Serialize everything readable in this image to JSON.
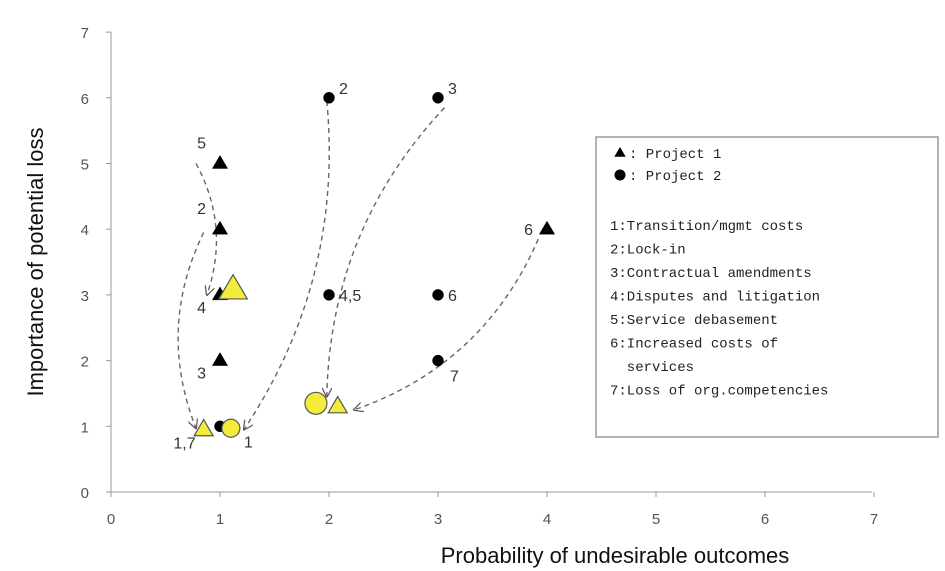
{
  "chart_data": {
    "type": "scatter",
    "xlabel": "Probability of undesirable outcomes",
    "ylabel": "Importance of potential loss",
    "xlim": [
      0,
      7
    ],
    "ylim": [
      0,
      7
    ],
    "xticks": [
      "0",
      "1",
      "2",
      "3",
      "4",
      "5",
      "6",
      "7"
    ],
    "yticks": [
      "0",
      "1",
      "2",
      "3",
      "4",
      "5",
      "6",
      "7"
    ],
    "grid": false,
    "legend_placement": "right",
    "series": [
      {
        "name": "Project 1",
        "marker": "triangle",
        "color": "#000000",
        "points": [
          {
            "x": 1,
            "y": 5,
            "label": "5"
          },
          {
            "x": 1,
            "y": 4,
            "label": "2"
          },
          {
            "x": 1,
            "y": 3,
            "label": "4"
          },
          {
            "x": 1,
            "y": 2,
            "label": "3"
          },
          {
            "x": 4,
            "y": 4,
            "label": "6"
          }
        ]
      },
      {
        "name": "Project 2",
        "marker": "circle",
        "color": "#000000",
        "points": [
          {
            "x": 2,
            "y": 6,
            "label": "2"
          },
          {
            "x": 3,
            "y": 6,
            "label": "3"
          },
          {
            "x": 2,
            "y": 3,
            "label": "4,5"
          },
          {
            "x": 3,
            "y": 3,
            "label": "6"
          },
          {
            "x": 3,
            "y": 2,
            "label": "7"
          },
          {
            "x": 1,
            "y": 1,
            "label": ""
          }
        ]
      },
      {
        "name": "",
        "marker": "highlight",
        "color": "#f2ec3c",
        "points": [
          {
            "x": 1.12,
            "y": 3.08,
            "shape": "triangle",
            "size": "large",
            "label": ""
          },
          {
            "x": 0.85,
            "y": 0.95,
            "shape": "triangle",
            "size": "small",
            "label": "1,7"
          },
          {
            "x": 1.1,
            "y": 0.97,
            "shape": "circle",
            "size": "small",
            "label": "1"
          },
          {
            "x": 1.88,
            "y": 1.35,
            "shape": "circle",
            "size": "medium",
            "label": ""
          },
          {
            "x": 2.08,
            "y": 1.3,
            "shape": "triangle",
            "size": "small",
            "label": ""
          }
        ]
      }
    ],
    "arrows": [
      {
        "from": [
          0.78,
          5.0
        ],
        "to": [
          0.88,
          3.0
        ]
      },
      {
        "from": [
          0.85,
          3.95
        ],
        "to": [
          0.78,
          0.97
        ]
      },
      {
        "from": [
          1.98,
          5.95
        ],
        "to": [
          1.22,
          0.95
        ]
      },
      {
        "from": [
          3.06,
          5.85
        ],
        "to": [
          1.98,
          1.45
        ]
      },
      {
        "from": [
          3.92,
          3.85
        ],
        "to": [
          2.23,
          1.25
        ]
      }
    ],
    "legend": {
      "entries": [
        {
          "marker": "triangle",
          "text": ": Project 1"
        },
        {
          "marker": "circle",
          "text": ": Project 2"
        }
      ],
      "items": [
        "1:Transition/mgmt costs",
        "2:Lock-in",
        "3:Contractual amendments",
        "4:Disputes and litigation",
        "5:Service debasement",
        "6:Increased costs of",
        "  services",
        "7:Loss of org.competencies"
      ]
    }
  }
}
